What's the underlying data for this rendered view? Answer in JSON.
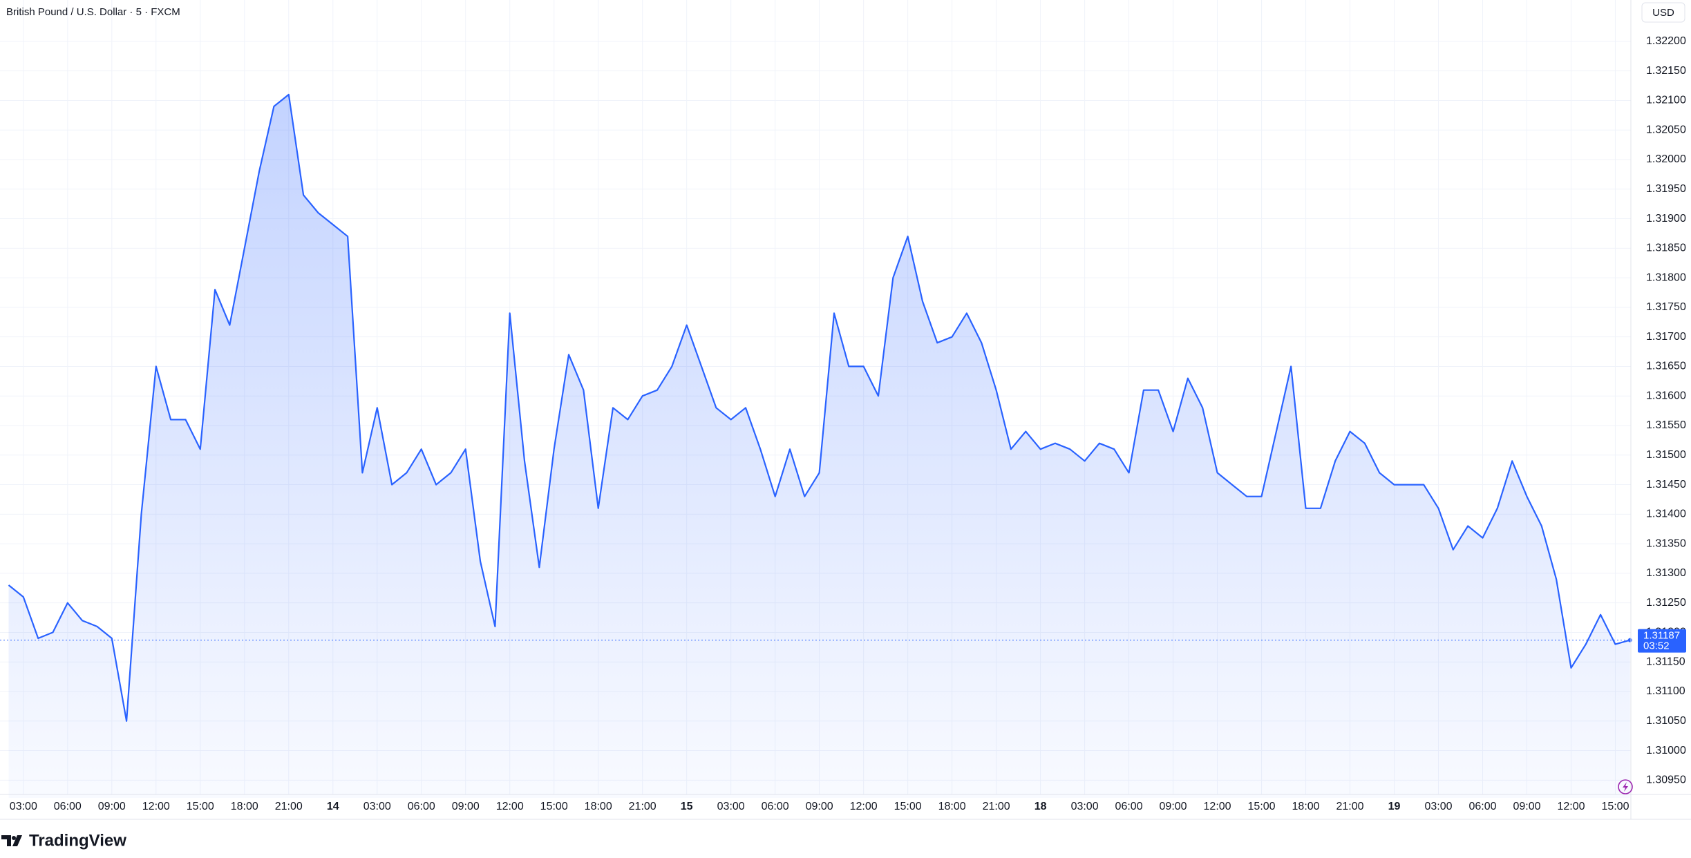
{
  "header": {
    "symbol_title": "British Pound / U.S. Dollar · 5 · FXCM",
    "currency": "USD"
  },
  "chart_data": {
    "type": "line",
    "color": "#2962ff",
    "grid": true,
    "categories": [
      null,
      "03:00",
      null,
      null,
      "06:00",
      null,
      null,
      "09:00",
      null,
      null,
      "12:00",
      null,
      null,
      "15:00",
      null,
      null,
      "18:00",
      null,
      null,
      "21:00",
      null,
      null,
      "14",
      null,
      null,
      "03:00",
      null,
      null,
      "06:00",
      null,
      null,
      "09:00",
      null,
      null,
      "12:00",
      null,
      null,
      "15:00",
      null,
      null,
      "18:00",
      null,
      null,
      "21:00",
      null,
      null,
      "15",
      null,
      null,
      "03:00",
      null,
      null,
      "06:00",
      null,
      null,
      "09:00",
      null,
      null,
      "12:00",
      null,
      null,
      "15:00",
      null,
      null,
      "18:00",
      null,
      null,
      "21:00",
      null,
      null,
      "18",
      null,
      null,
      "03:00",
      null,
      null,
      "06:00",
      null,
      null,
      "09:00",
      null,
      null,
      "12:00",
      null,
      null,
      "15:00",
      null,
      null,
      "18:00",
      null,
      null,
      "21:00",
      null,
      null,
      "19",
      null,
      null,
      "03:00",
      null,
      null,
      "06:00",
      null,
      null,
      "09:00",
      null,
      null,
      "12:00",
      null,
      null,
      "15:00",
      null
    ],
    "values": [
      1.3128,
      1.3126,
      1.3119,
      1.312,
      1.3125,
      1.3122,
      1.3121,
      1.3119,
      1.3105,
      1.314,
      1.3165,
      1.3156,
      1.3156,
      1.3151,
      1.3178,
      1.3172,
      1.3185,
      1.3198,
      1.3209,
      1.3211,
      1.3194,
      1.3191,
      1.3189,
      1.3187,
      1.3147,
      1.3158,
      1.3145,
      1.3147,
      1.3151,
      1.3145,
      1.3147,
      1.3151,
      1.3132,
      1.3121,
      1.3174,
      1.3149,
      1.3131,
      1.3151,
      1.3167,
      1.3161,
      1.3141,
      1.3158,
      1.3156,
      1.316,
      1.3161,
      1.3165,
      1.3172,
      1.3165,
      1.3158,
      1.3156,
      1.3158,
      1.3151,
      1.3143,
      1.3151,
      1.3143,
      1.3147,
      1.3174,
      1.3165,
      1.3165,
      1.316,
      1.318,
      1.3187,
      1.3176,
      1.3169,
      1.317,
      1.3174,
      1.3169,
      1.3161,
      1.3151,
      1.3154,
      1.3151,
      1.3152,
      1.3151,
      1.3149,
      1.3152,
      1.3151,
      1.3147,
      1.3161,
      1.3161,
      1.3154,
      1.3163,
      1.3158,
      1.3147,
      1.3145,
      1.3143,
      1.3143,
      1.3154,
      1.3165,
      1.3141,
      1.3141,
      1.3149,
      1.3154,
      1.3152,
      1.3147,
      1.3145,
      1.3145,
      1.3145,
      1.3141,
      1.3134,
      1.3138,
      1.3136,
      1.3141,
      1.3149,
      1.3143,
      1.3138,
      1.3129,
      1.3114,
      1.3118,
      1.3123,
      1.3118,
      1.31187
    ],
    "ylim": [
      1.3092,
      1.3227
    ],
    "yticks": [
      {
        "value": 1.3095,
        "label": "1.30950"
      },
      {
        "value": 1.31,
        "label": "1.31000"
      },
      {
        "value": 1.3105,
        "label": "1.31050"
      },
      {
        "value": 1.311,
        "label": "1.31100"
      },
      {
        "value": 1.3115,
        "label": "1.31150"
      },
      {
        "value": 1.312,
        "label": "1.31200"
      },
      {
        "value": 1.3125,
        "label": "1.31250"
      },
      {
        "value": 1.313,
        "label": "1.31300"
      },
      {
        "value": 1.3135,
        "label": "1.31350"
      },
      {
        "value": 1.314,
        "label": "1.31400"
      },
      {
        "value": 1.3145,
        "label": "1.31450"
      },
      {
        "value": 1.315,
        "label": "1.31500"
      },
      {
        "value": 1.3155,
        "label": "1.31550"
      },
      {
        "value": 1.316,
        "label": "1.31600"
      },
      {
        "value": 1.3165,
        "label": "1.31650"
      },
      {
        "value": 1.317,
        "label": "1.31700"
      },
      {
        "value": 1.3175,
        "label": "1.31750"
      },
      {
        "value": 1.318,
        "label": "1.31800"
      },
      {
        "value": 1.3185,
        "label": "1.31850"
      },
      {
        "value": 1.319,
        "label": "1.31900"
      },
      {
        "value": 1.3195,
        "label": "1.31950"
      },
      {
        "value": 1.32,
        "label": "1.32000"
      },
      {
        "value": 1.3205,
        "label": "1.32050"
      },
      {
        "value": 1.321,
        "label": "1.32100"
      },
      {
        "value": 1.3215,
        "label": "1.32150"
      },
      {
        "value": 1.322,
        "label": "1.32200"
      }
    ],
    "countdown": "03:52"
  },
  "footer": {
    "brand": "TradingView"
  }
}
